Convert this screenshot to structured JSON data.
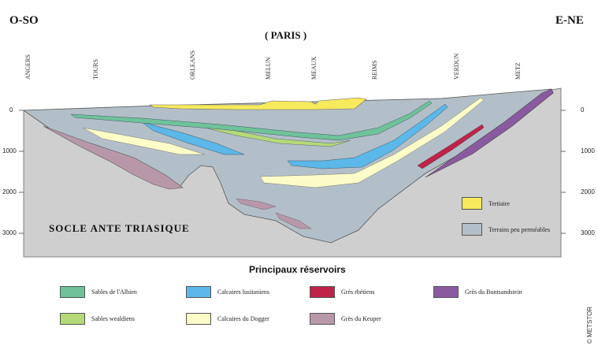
{
  "header": {
    "west": "O-SO",
    "east": "E-NE",
    "paris": "( PARIS )"
  },
  "cities": [
    {
      "name": "ANGERS"
    },
    {
      "name": "TOURS"
    },
    {
      "name": "ORLEANS"
    },
    {
      "name": "MELUN"
    },
    {
      "name": "MEAUX"
    },
    {
      "name": "REIMS"
    },
    {
      "name": "VERDUN"
    },
    {
      "name": "METZ"
    }
  ],
  "depth_ticks": [
    "0",
    "1000",
    "2000",
    "3000"
  ],
  "section": {
    "socle_label": "SOCLE ANTE TRIASIQUE"
  },
  "map_legend": {
    "tertiaire": "Tertiaire",
    "terrains": "Terrains peu perméables"
  },
  "legend": {
    "title": "Principaux réservoirs",
    "items": [
      {
        "label": "Sables de l'Albien",
        "color": "#6fc29a"
      },
      {
        "label": "Calcaires lusitaniens",
        "color": "#5bb8e8"
      },
      {
        "label": "Grès rhétiens",
        "color": "#c0234a"
      },
      {
        "label": "Grès du Buntsandstein",
        "color": "#8a5aa0"
      },
      {
        "label": "Sables wealdiens",
        "color": "#b5d977"
      },
      {
        "label": "Calcaires du Dogger",
        "color": "#fcfcc8"
      },
      {
        "label": "Grès du Keuper",
        "color": "#b898a8"
      }
    ]
  },
  "colors": {
    "tertiaire": "#f7ea5c",
    "terrains": "#b3bfc8",
    "socle": "#cfcfcf"
  },
  "copyright": "© METSTOR"
}
